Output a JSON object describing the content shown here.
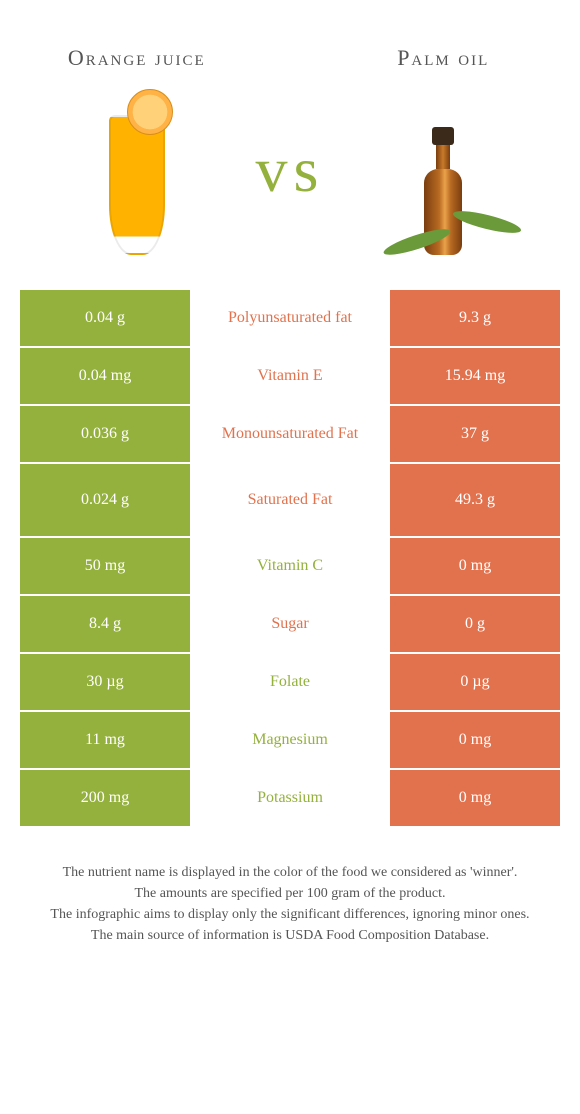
{
  "colors": {
    "left": "#94b13d",
    "right": "#e2724d",
    "vs": "#94b13d"
  },
  "left": {
    "title": "Orange juice"
  },
  "right": {
    "title": "Palm oil"
  },
  "vs_label": "vs",
  "rows": [
    {
      "left": "0.04 g",
      "label": "Polyunsaturated fat",
      "right": "9.3 g",
      "winner": "right"
    },
    {
      "left": "0.04 mg",
      "label": "Vitamin E",
      "right": "15.94 mg",
      "winner": "right"
    },
    {
      "left": "0.036 g",
      "label": "Monounsaturated Fat",
      "right": "37 g",
      "winner": "right"
    },
    {
      "left": "0.024 g",
      "label": "Saturated Fat",
      "right": "49.3 g",
      "winner": "right"
    },
    {
      "left": "50 mg",
      "label": "Vitamin C",
      "right": "0 mg",
      "winner": "left"
    },
    {
      "left": "8.4 g",
      "label": "Sugar",
      "right": "0 g",
      "winner": "right"
    },
    {
      "left": "30 µg",
      "label": "Folate",
      "right": "0 µg",
      "winner": "left"
    },
    {
      "left": "11 mg",
      "label": "Magnesium",
      "right": "0 mg",
      "winner": "left"
    },
    {
      "left": "200 mg",
      "label": "Potassium",
      "right": "0 mg",
      "winner": "left"
    }
  ],
  "footer": [
    "The nutrient name is displayed in the color of the food we considered as 'winner'.",
    "The amounts are specified per 100 gram of the product.",
    "The infographic aims to display only the significant differences, ignoring minor ones.",
    "The main source of information is USDA Food Composition Database."
  ]
}
